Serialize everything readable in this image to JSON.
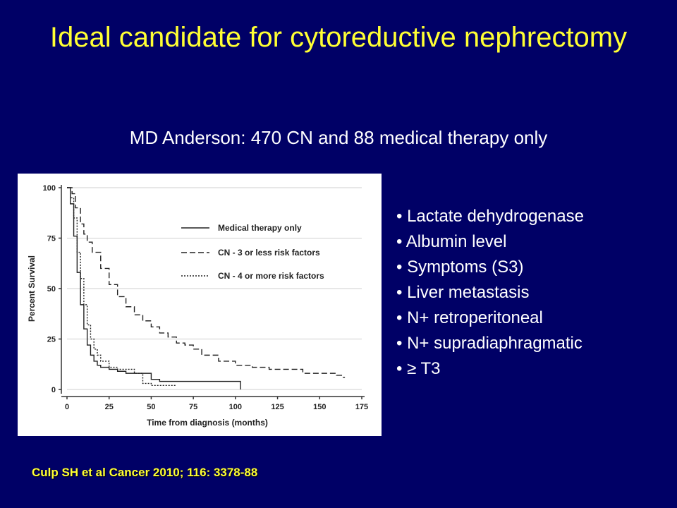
{
  "slide": {
    "title": "Ideal candidate for cytoreductive nephrectomy",
    "subtitle": "MD Anderson: 470 CN and 88 medical therapy only",
    "bullets": [
      "Lactate dehydrogenase",
      "Albumin level",
      "Symptoms (S3)",
      "Liver metastasis",
      "N+ retroperitoneal",
      "N+ supradiaphragmatic",
      "≥ T3"
    ],
    "citation": "Culp SH et al Cancer 2010; 116: 3378-88"
  },
  "chart_data": {
    "type": "line",
    "title": "",
    "xlabel": "Time from diagnosis (months)",
    "ylabel": "Percent Survival",
    "xlim": [
      0,
      175
    ],
    "ylim": [
      0,
      100
    ],
    "x_ticks": [
      "0",
      "25",
      "50",
      "75",
      "100",
      "125",
      "150",
      "175"
    ],
    "y_ticks": [
      "0",
      "25",
      "50",
      "75",
      "100"
    ],
    "grid": "horizontal",
    "legend_position": "upper-right",
    "series": [
      {
        "name": "Medical therapy only",
        "style": "solid",
        "x": [
          0,
          2,
          4,
          6,
          8,
          10,
          12,
          14,
          16,
          18,
          20,
          25,
          30,
          35,
          50,
          55,
          103
        ],
        "y": [
          100,
          92,
          76,
          58,
          42,
          30,
          22,
          17,
          14,
          12,
          11,
          10,
          9,
          8,
          5,
          4,
          0
        ]
      },
      {
        "name": "CN - 3 or less risk factors",
        "style": "dashed",
        "x": [
          0,
          3,
          5,
          8,
          10,
          12,
          15,
          20,
          25,
          30,
          35,
          40,
          45,
          50,
          55,
          60,
          65,
          70,
          75,
          80,
          90,
          100,
          110,
          120,
          140,
          160,
          163,
          165
        ],
        "y": [
          100,
          97,
          90,
          82,
          77,
          73,
          68,
          60,
          52,
          46,
          41,
          37,
          34,
          31,
          28,
          26,
          23,
          22,
          20,
          17,
          14,
          12,
          11,
          10,
          8,
          7,
          6,
          6
        ]
      },
      {
        "name": "CN - 4 or more risk factors",
        "style": "dotted",
        "x": [
          0,
          2,
          4,
          6,
          8,
          10,
          12,
          14,
          16,
          18,
          20,
          25,
          30,
          40,
          45,
          50,
          55,
          60,
          65
        ],
        "y": [
          100,
          95,
          85,
          68,
          55,
          42,
          32,
          25,
          20,
          17,
          14,
          11,
          10,
          8,
          3,
          2,
          2,
          2,
          2
        ]
      }
    ]
  }
}
